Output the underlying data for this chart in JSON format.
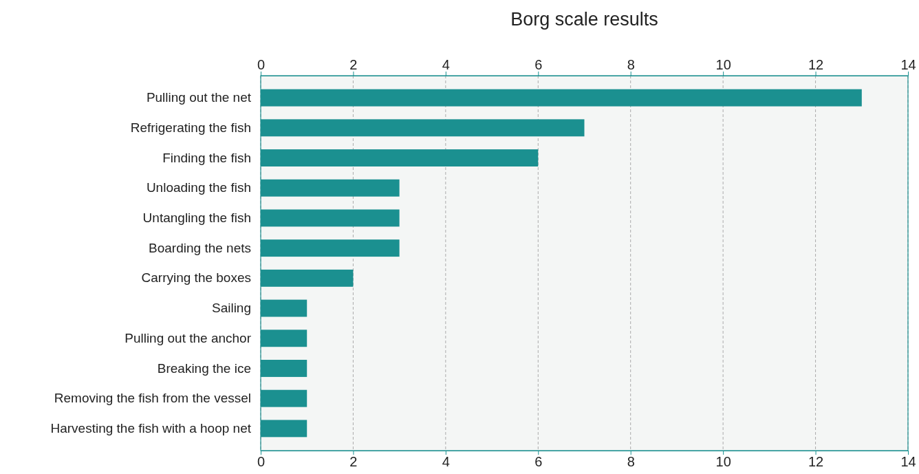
{
  "chart_data": {
    "type": "bar",
    "orientation": "horizontal",
    "title": "Borg scale results",
    "categories": [
      "Pulling out the net",
      "Refrigerating the fish",
      "Finding the fish",
      "Unloading the fish",
      "Untangling the fish",
      "Boarding the nets",
      "Carrying the boxes",
      "Sailing",
      "Pulling out the anchor",
      "Breaking the ice",
      "Removing the fish from the vessel",
      "Harvesting the fish with a hoop net"
    ],
    "values": [
      13,
      7,
      6,
      3,
      3,
      3,
      2,
      1,
      1,
      1,
      1,
      1
    ],
    "color": "#1b9090",
    "xlim": [
      0,
      14
    ],
    "xticks": [
      0,
      2,
      4,
      6,
      8,
      10,
      12,
      14
    ],
    "x2lim": [
      0,
      14
    ],
    "x2ticks": [
      0,
      2,
      4,
      6,
      8,
      10,
      12,
      14
    ],
    "grid": "x"
  }
}
